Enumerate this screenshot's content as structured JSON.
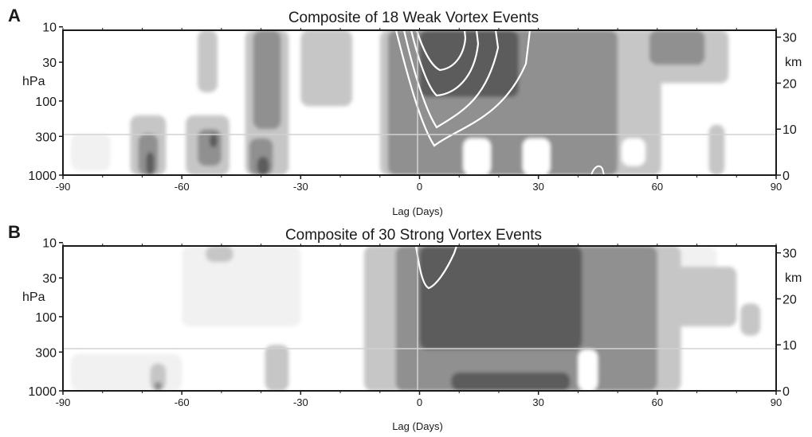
{
  "chart_data": [
    {
      "type": "heatmap",
      "panel_label": "A",
      "title": "Composite of 18 Weak Vortex Events",
      "xlabel": "Lag (Days)",
      "ylabel": "hPa",
      "ylabel_right": "km",
      "x_ticks": [
        "-90",
        "-60",
        "-30",
        "0",
        "30",
        "60",
        "90"
      ],
      "x_values": [
        -90,
        -60,
        -30,
        0,
        30,
        60,
        90
      ],
      "y_ticks": [
        "10",
        "30",
        "100",
        "300",
        "1000"
      ],
      "y_values": [
        10,
        30,
        100,
        300,
        1000
      ],
      "y_right_ticks": [
        "30",
        "20",
        "10",
        "0"
      ],
      "y_right_values": [
        30,
        20,
        10,
        0
      ],
      "xlim": [
        -90,
        90
      ],
      "ylim_hPa": [
        1000,
        10
      ],
      "ylim_km": [
        0,
        31.5
      ],
      "y_scale": "log-pressure",
      "reference_lines": {
        "x": 0,
        "y_hPa": 300
      },
      "shading_levels": [
        "#f1f1f1",
        "#c6c6c6",
        "#909090",
        "#5c5c5c",
        "#333333"
      ],
      "contour_color": "#ffffff",
      "features": [
        {
          "level": 1,
          "day": [
            -88,
            -78
          ],
          "km": [
            1,
            9
          ]
        },
        {
          "level": 2,
          "day": [
            -73,
            -64
          ],
          "km": [
            0,
            13
          ]
        },
        {
          "level": 3,
          "day": [
            -71,
            -66
          ],
          "km": [
            0,
            9
          ]
        },
        {
          "level": 4,
          "day": [
            -69,
            -67
          ],
          "km": [
            0,
            5
          ]
        },
        {
          "level": 2,
          "day": [
            -59,
            -48
          ],
          "km": [
            0,
            13
          ]
        },
        {
          "level": 3,
          "day": [
            -56,
            -50
          ],
          "km": [
            2,
            10
          ]
        },
        {
          "level": 4,
          "day": [
            -53,
            -51
          ],
          "km": [
            6,
            9
          ]
        },
        {
          "level": 2,
          "day": [
            -56,
            -51
          ],
          "km": [
            18,
            31.5
          ]
        },
        {
          "level": 2,
          "day": [
            -44,
            -33
          ],
          "km": [
            0,
            31.5
          ]
        },
        {
          "level": 3,
          "day": [
            -42,
            -35
          ],
          "km": [
            10,
            31.5
          ]
        },
        {
          "level": 3,
          "day": [
            -43,
            -37
          ],
          "km": [
            0,
            8
          ]
        },
        {
          "level": 4,
          "day": [
            -41,
            -38
          ],
          "km": [
            0,
            4
          ]
        },
        {
          "level": 2,
          "day": [
            -30,
            -17
          ],
          "km": [
            15,
            31.5
          ]
        },
        {
          "level": 2,
          "day": [
            -10,
            61
          ],
          "km": [
            0,
            31.5
          ]
        },
        {
          "level": 3,
          "day": [
            -8,
            50
          ],
          "km": [
            0,
            31.5
          ]
        },
        {
          "level": 4,
          "day": [
            0,
            25
          ],
          "km": [
            17,
            31.5
          ]
        },
        {
          "level": 2,
          "day": [
            52,
            78
          ],
          "km": [
            20,
            31.5
          ]
        },
        {
          "level": 3,
          "day": [
            58,
            72
          ],
          "km": [
            24,
            31.5
          ]
        },
        {
          "level": 2,
          "day": [
            73,
            77
          ],
          "km": [
            0,
            11
          ]
        }
      ],
      "white_patches": [
        {
          "day": [
            11,
            18
          ],
          "km": [
            0,
            8
          ]
        },
        {
          "day": [
            26,
            33
          ],
          "km": [
            0,
            8
          ]
        },
        {
          "day": [
            51,
            57
          ],
          "km": [
            2,
            8
          ]
        }
      ]
    },
    {
      "type": "heatmap",
      "panel_label": "B",
      "title": "Composite of 30 Strong Vortex Events",
      "xlabel": "Lag (Days)",
      "ylabel": "hPa",
      "ylabel_right": "km",
      "x_ticks": [
        "-90",
        "-60",
        "-30",
        "0",
        "30",
        "60",
        "90"
      ],
      "x_values": [
        -90,
        -60,
        -30,
        0,
        30,
        60,
        90
      ],
      "y_ticks": [
        "10",
        "30",
        "100",
        "300",
        "1000"
      ],
      "y_values": [
        10,
        30,
        100,
        300,
        1000
      ],
      "y_right_ticks": [
        "30",
        "20",
        "10",
        "0"
      ],
      "y_right_values": [
        30,
        20,
        10,
        0
      ],
      "xlim": [
        -90,
        90
      ],
      "ylim_hPa": [
        1000,
        10
      ],
      "ylim_km": [
        0,
        31.5
      ],
      "y_scale": "log-pressure",
      "reference_lines": {
        "x": 0,
        "y_hPa": 300
      },
      "shading_levels": [
        "#f1f1f1",
        "#c6c6c6",
        "#909090",
        "#5c5c5c",
        "#333333"
      ],
      "contour_color": "#ffffff",
      "features": [
        {
          "level": 1,
          "day": [
            -60,
            -30
          ],
          "km": [
            14,
            31.5
          ]
        },
        {
          "level": 1,
          "day": [
            -88,
            -60
          ],
          "km": [
            0,
            8
          ]
        },
        {
          "level": 2,
          "day": [
            -68,
            -64
          ],
          "km": [
            0,
            6
          ]
        },
        {
          "level": 3,
          "day": [
            -67,
            -65
          ],
          "km": [
            0,
            2
          ]
        },
        {
          "level": 2,
          "day": [
            -54,
            -47
          ],
          "km": [
            28,
            31.5
          ]
        },
        {
          "level": 2,
          "day": [
            -39,
            -33
          ],
          "km": [
            0,
            10
          ]
        },
        {
          "level": 2,
          "day": [
            -14,
            66
          ],
          "km": [
            0,
            31.5
          ]
        },
        {
          "level": 3,
          "day": [
            -6,
            60
          ],
          "km": [
            0,
            31.5
          ]
        },
        {
          "level": 4,
          "day": [
            0,
            41
          ],
          "km": [
            9,
            31.5
          ]
        },
        {
          "level": 4,
          "day": [
            8,
            38
          ],
          "km": [
            0,
            4
          ]
        },
        {
          "level": 2,
          "day": [
            56,
            80
          ],
          "km": [
            14,
            27
          ]
        },
        {
          "level": 2,
          "day": [
            81,
            86
          ],
          "km": [
            12,
            19
          ]
        },
        {
          "level": 1,
          "day": [
            40,
            75
          ],
          "km": [
            18,
            31.5
          ]
        }
      ],
      "white_patches": [
        {
          "day": [
            40,
            45
          ],
          "km": [
            0,
            9
          ]
        }
      ]
    }
  ]
}
